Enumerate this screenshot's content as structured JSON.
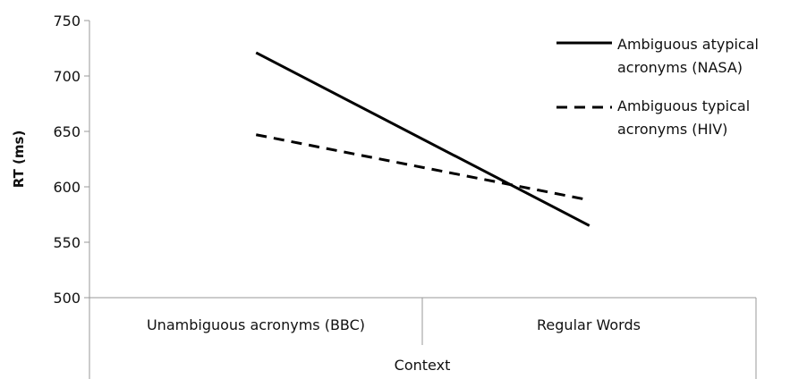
{
  "chart_data": {
    "type": "line",
    "title": "",
    "xlabel": "Context",
    "ylabel": "RT (ms)",
    "ylim": [
      500,
      750
    ],
    "yticks": [
      500,
      550,
      600,
      650,
      700,
      750
    ],
    "categories": [
      "Unambiguous acronyms (BBC)",
      "Regular Words"
    ],
    "series": [
      {
        "name": "Ambiguous atypical acronyms (NASA)",
        "values": [
          721,
          565
        ],
        "style": "solid",
        "color": "#000000"
      },
      {
        "name": "Ambiguous typical acronyms (HIV)",
        "values": [
          647,
          588
        ],
        "style": "dashed",
        "color": "#000000"
      }
    ],
    "legend": {
      "position": "top-right",
      "entries": [
        [
          "Ambiguous atypical",
          "acronyms (NASA)"
        ],
        [
          "Ambiguous typical",
          "acronyms (HIV)"
        ]
      ]
    },
    "grid": false
  }
}
